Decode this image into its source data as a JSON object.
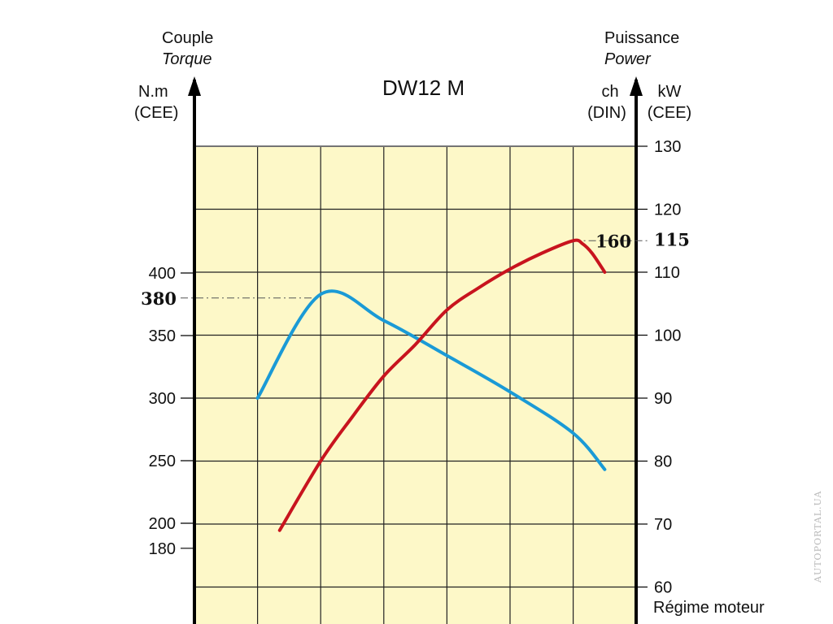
{
  "chart_data": {
    "type": "line",
    "title": "DW12 M",
    "left_axis": {
      "title": "Couple",
      "title_en": "Torque",
      "unit": "N.m",
      "unit_std": "(CEE)",
      "ticks": [
        400,
        350,
        300,
        250,
        200,
        180
      ],
      "highlight": 380
    },
    "right_axis_ch": {
      "unit": "ch",
      "unit_std": "(DIN)",
      "highlight": 160
    },
    "right_axis": {
      "title": "Puissance",
      "title_en": "Power",
      "unit": "kW",
      "unit_std": "(CEE)",
      "ticks": [
        130,
        120,
        110,
        100,
        90,
        80,
        70,
        60
      ],
      "highlight": 115
    },
    "xlabel": "Régime moteur",
    "grid": true,
    "series": [
      {
        "name": "Couple",
        "color": "#1a9ad6",
        "axis": "left",
        "points": [
          [
            1,
            300
          ],
          [
            2,
            383
          ],
          [
            3,
            362
          ],
          [
            4,
            334
          ],
          [
            5,
            305
          ],
          [
            6,
            272
          ],
          [
            6.5,
            243
          ]
        ]
      },
      {
        "name": "Puissance",
        "color": "#c8141e",
        "axis": "right",
        "points": [
          [
            1.35,
            69
          ],
          [
            2,
            80
          ],
          [
            2.5,
            87
          ],
          [
            3,
            93.5
          ],
          [
            3.5,
            98.5
          ],
          [
            4,
            104
          ],
          [
            4.5,
            107.5
          ],
          [
            5,
            110.5
          ],
          [
            5.5,
            113
          ],
          [
            6,
            115
          ],
          [
            6.15,
            114.5
          ],
          [
            6.3,
            113
          ],
          [
            6.5,
            110
          ]
        ]
      }
    ]
  },
  "watermark": "AUTOPORTAL.UA",
  "colors": {
    "plot_bg": "#fdf8c8",
    "grid": "#222222",
    "axis": "#000000"
  }
}
